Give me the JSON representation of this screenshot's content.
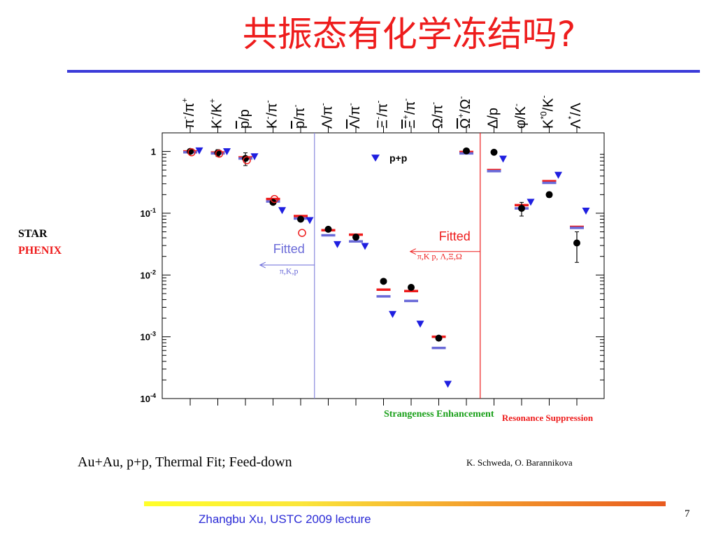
{
  "slide": {
    "title": "共振态有化学冻结吗?",
    "side_labels": {
      "star": "STAR",
      "phenix": "PHENIX"
    },
    "bottom_left": "Au+Au, p+p, Thermal Fit; Feed-down",
    "credit": "K. Schweda, O. Barannikova",
    "footer": "Zhangbu Xu, USTC 2009 lecture",
    "page_number": "7"
  },
  "colors": {
    "title": "#ee1c1c",
    "rule": "#3b3bd9",
    "fit_red": "#ee1c1c",
    "fit_blue": "#6a6ad8",
    "pp": "#1f1fe0",
    "star": "#000000",
    "phenix": "#ee1c1c",
    "strange_label": "#1aa01a",
    "resonance_label": "#ee1c1c"
  },
  "chart_data": {
    "type": "scatter",
    "yscale": "log",
    "ylim": [
      0.0001,
      2
    ],
    "yticks": [
      {
        "value": 1,
        "base": "1",
        "exp": ""
      },
      {
        "value": 0.1,
        "base": "10",
        "exp": "-1"
      },
      {
        "value": 0.01,
        "base": "10",
        "exp": "-2"
      },
      {
        "value": 0.001,
        "base": "10",
        "exp": "-3"
      },
      {
        "value": 0.0001,
        "base": "10",
        "exp": "-4"
      }
    ],
    "categories": [
      {
        "main": "π",
        "sup": "-",
        "den": "/π",
        "dsup": "+",
        "bar": false
      },
      {
        "main": "K",
        "sup": "-",
        "den": "/K",
        "dsup": "+",
        "bar": false
      },
      {
        "main": "p",
        "sup": "",
        "den": "/p",
        "dsup": "",
        "bar": true
      },
      {
        "main": "K",
        "sup": "-",
        "den": "/π",
        "dsup": "-",
        "bar": false
      },
      {
        "main": "p",
        "sup": "",
        "den": "/π",
        "dsup": "-",
        "bar": true
      },
      {
        "main": "Λ",
        "sup": "",
        "den": "/π",
        "dsup": "-",
        "bar": false
      },
      {
        "main": "Λ",
        "sup": "",
        "den": "/π",
        "dsup": "-",
        "bar": true
      },
      {
        "main": "Ξ",
        "sup": "-",
        "den": "/π",
        "dsup": "-",
        "bar": false
      },
      {
        "main": "Ξ",
        "sup": "+",
        "den": "/π",
        "dsup": "-",
        "bar": true
      },
      {
        "main": "Ω",
        "sup": "",
        "den": "/π",
        "dsup": "-",
        "bar": false
      },
      {
        "main": "Ω",
        "sup": "+",
        "den": "/Ω",
        "dsup": "-",
        "bar": true
      },
      {
        "main": "Δ",
        "sup": "",
        "den": "/p",
        "dsup": "",
        "bar": false
      },
      {
        "main": "φ",
        "sup": "",
        "den": "/K",
        "dsup": "-",
        "bar": false
      },
      {
        "main": "K",
        "sup": "*0",
        "den": "/K",
        "dsup": "-",
        "bar": false
      },
      {
        "main": "Λ",
        "sup": "*",
        "den": "/Λ",
        "dsup": "",
        "bar": false
      }
    ],
    "series": [
      {
        "name": "fit-red",
        "marker": "dash",
        "points": [
          {
            "i": 0,
            "y": 1.0
          },
          {
            "i": 1,
            "y": 0.96
          },
          {
            "i": 2,
            "y": 0.8
          },
          {
            "i": 3,
            "y": 0.17
          },
          {
            "i": 4,
            "y": 0.09
          },
          {
            "i": 5,
            "y": 0.053
          },
          {
            "i": 6,
            "y": 0.045
          },
          {
            "i": 7,
            "y": 0.0058
          },
          {
            "i": 8,
            "y": 0.0055
          },
          {
            "i": 9,
            "y": 0.001
          },
          {
            "i": 10,
            "y": 0.98
          },
          {
            "i": 11,
            "y": 0.5
          },
          {
            "i": 12,
            "y": 0.135
          },
          {
            "i": 13,
            "y": 0.33
          },
          {
            "i": 14,
            "y": 0.06
          }
        ]
      },
      {
        "name": "fit-blue",
        "marker": "dash",
        "points": [
          {
            "i": 0,
            "y": 0.97
          },
          {
            "i": 1,
            "y": 0.93
          },
          {
            "i": 2,
            "y": 0.77
          },
          {
            "i": 3,
            "y": 0.155
          },
          {
            "i": 4,
            "y": 0.082
          },
          {
            "i": 5,
            "y": 0.044
          },
          {
            "i": 6,
            "y": 0.035
          },
          {
            "i": 7,
            "y": 0.0045
          },
          {
            "i": 8,
            "y": 0.0038
          },
          {
            "i": 9,
            "y": 0.00066
          },
          {
            "i": 10,
            "y": 0.93
          },
          {
            "i": 11,
            "y": 0.48
          },
          {
            "i": 12,
            "y": 0.12
          },
          {
            "i": 13,
            "y": 0.31
          },
          {
            "i": 14,
            "y": 0.058
          }
        ]
      },
      {
        "name": "STAR",
        "marker": "filled-circle",
        "points": [
          {
            "i": 0,
            "y": 1.0,
            "err": 0.06
          },
          {
            "i": 1,
            "y": 0.95,
            "err": 0.12
          },
          {
            "i": 2,
            "y": 0.77,
            "err": 0.18
          },
          {
            "i": 3,
            "y": 0.15,
            "err": 0.01
          },
          {
            "i": 4,
            "y": 0.08,
            "err": 0.006
          },
          {
            "i": 5,
            "y": 0.055,
            "err": 0.003
          },
          {
            "i": 6,
            "y": 0.041,
            "err": 0.003
          },
          {
            "i": 7,
            "y": 0.0079,
            "err": 0.0005
          },
          {
            "i": 8,
            "y": 0.0063,
            "err": 0.0004
          },
          {
            "i": 9,
            "y": 0.00095,
            "err": 8e-05
          },
          {
            "i": 10,
            "y": 1.02,
            "err": 0.06
          },
          {
            "i": 11,
            "y": 0.97,
            "err": 0.05
          },
          {
            "i": 12,
            "y": 0.12,
            "err": 0.03
          },
          {
            "i": 13,
            "y": 0.2,
            "err": 0.02
          },
          {
            "i": 14,
            "y": 0.033,
            "err": 0.017
          }
        ]
      },
      {
        "name": "PHENIX",
        "marker": "open-circle",
        "points": [
          {
            "i": 0,
            "y": 0.97
          },
          {
            "i": 1,
            "y": 0.92
          },
          {
            "i": 2,
            "y": 0.72
          },
          {
            "i": 3,
            "y": 0.17
          },
          {
            "i": 4,
            "y": 0.048
          }
        ]
      },
      {
        "name": "p+p",
        "marker": "triangle-down",
        "points": [
          {
            "i": 0,
            "y": 1.02
          },
          {
            "i": 1,
            "y": 0.99
          },
          {
            "i": 2,
            "y": 0.82
          },
          {
            "i": 3,
            "y": 0.11
          },
          {
            "i": 4,
            "y": 0.076
          },
          {
            "i": 5,
            "y": 0.031
          },
          {
            "i": 6,
            "y": 0.029
          },
          {
            "i": 7,
            "y": 0.0023
          },
          {
            "i": 8,
            "y": 0.0016
          },
          {
            "i": 9,
            "y": 0.00017
          },
          {
            "i": 11,
            "y": 0.75
          },
          {
            "i": 12,
            "y": 0.15
          },
          {
            "i": 13,
            "y": 0.41
          },
          {
            "i": 14,
            "y": 0.108
          }
        ]
      }
    ],
    "legend": {
      "label": "p+p",
      "position": "top-middle"
    },
    "dividers": [
      {
        "after": 4,
        "color": "#8888dd"
      },
      {
        "after": 10,
        "color": "#ee1c1c"
      }
    ],
    "annotations": {
      "fitted_left": {
        "title": "Fitted",
        "sub": "π,K,p"
      },
      "fitted_right": {
        "title": "Fitted",
        "sub": "π,K p, Λ,Ξ,Ω"
      },
      "strangeness": "Strangeness Enhancement",
      "resonance": "Resonance Suppression"
    }
  }
}
